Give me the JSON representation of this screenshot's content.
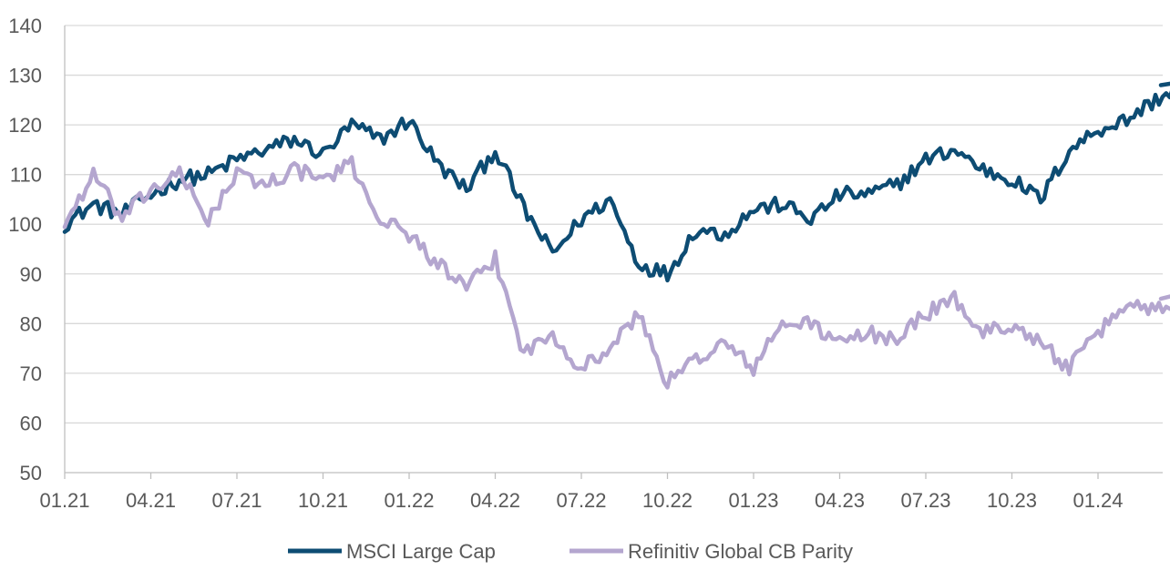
{
  "chart_data": {
    "type": "line",
    "title": "",
    "xlabel": "",
    "ylabel": "",
    "ylim": [
      50,
      140
    ],
    "yticks": [
      50,
      60,
      70,
      80,
      90,
      100,
      110,
      120,
      130,
      140
    ],
    "grid": true,
    "legend": "bottom",
    "x_tick_labels": [
      "01.21",
      "04.21",
      "07.21",
      "10.21",
      "01.22",
      "04.22",
      "07.22",
      "10.22",
      "01.23",
      "04.23",
      "07.23",
      "10.23",
      "01.24"
    ],
    "x": [
      "2021-01",
      "2021-02",
      "2021-03",
      "2021-04",
      "2021-05",
      "2021-06",
      "2021-07",
      "2021-08",
      "2021-09",
      "2021-10",
      "2021-11",
      "2021-12",
      "2022-01",
      "2022-02",
      "2022-03",
      "2022-04",
      "2022-05",
      "2022-06",
      "2022-07",
      "2022-08",
      "2022-09",
      "2022-10",
      "2022-11",
      "2022-12",
      "2023-01",
      "2023-02",
      "2023-03",
      "2023-04",
      "2023-05",
      "2023-06",
      "2023-07",
      "2023-08",
      "2023-09",
      "2023-10",
      "2023-11",
      "2023-12",
      "2024-01",
      "2024-02",
      "2024-03",
      "2024-04"
    ],
    "series": [
      {
        "name": "MSCI Large Cap",
        "color": "#0d4c73",
        "values": [
          100,
          104,
          102,
          106,
          109,
          110,
          113,
          115,
          117,
          114,
          120,
          117,
          121,
          112,
          107,
          115,
          103,
          94,
          101,
          105,
          92,
          90,
          99,
          98,
          103,
          104,
          101,
          106,
          106,
          108,
          113,
          115,
          111,
          109,
          105,
          115,
          119,
          121,
          125,
          128
        ]
      },
      {
        "name": "Refinitiv Global CB Parity",
        "color": "#b4a6cf",
        "values": [
          100,
          110,
          101,
          107,
          110,
          101,
          110,
          108,
          111,
          109,
          112,
          101,
          98,
          92,
          87,
          93,
          74,
          78,
          71,
          75,
          82,
          68,
          73,
          76,
          71,
          80,
          80,
          76,
          78,
          77,
          82,
          85,
          78,
          80,
          76,
          71,
          78,
          84,
          83,
          85
        ]
      }
    ]
  }
}
